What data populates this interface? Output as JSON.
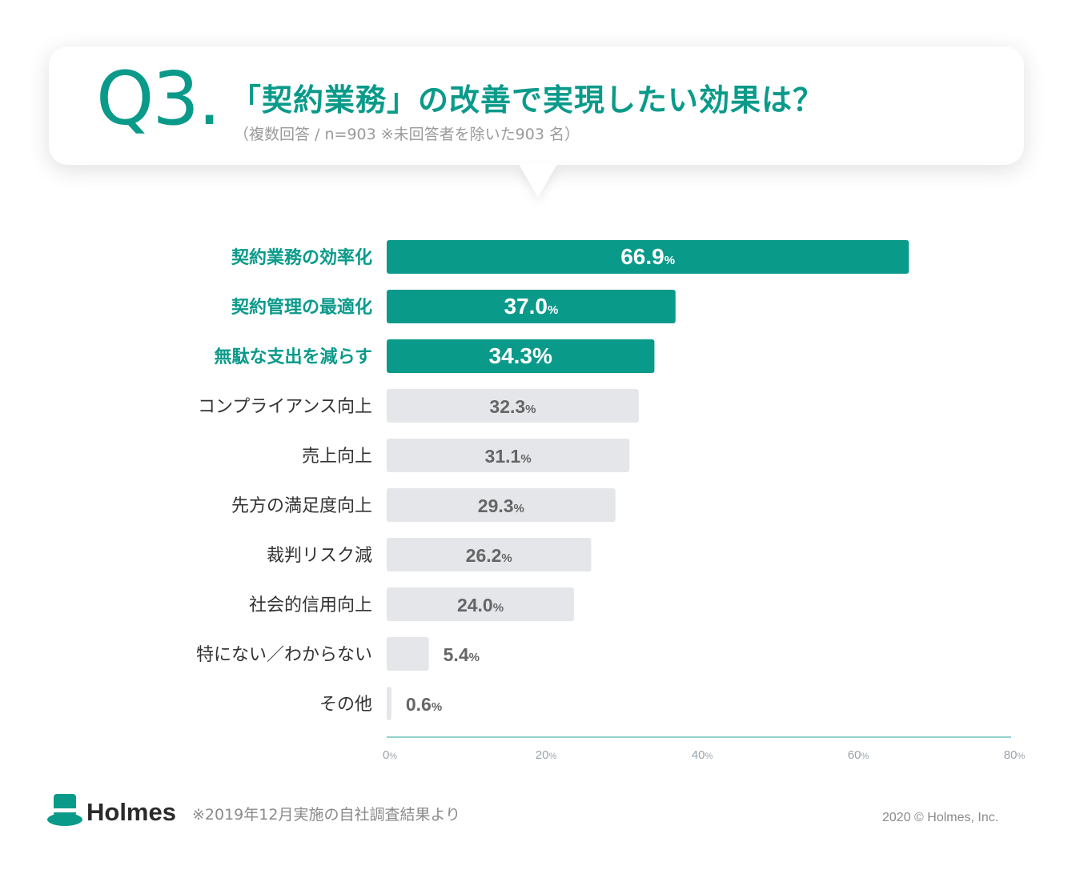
{
  "header": {
    "q_number": "Q3.",
    "title": "「契約業務」の改善で実現したい効果は？",
    "subtitle": "（複数回答 / n=903 ※未回答者を除いた903 名）"
  },
  "footer": {
    "logo": "Holmes",
    "note": "※2019年12月実施の自社調査結果より",
    "copyright": "2020 © Holmes, Inc."
  },
  "colors": {
    "accent": "#0a9a8a",
    "bar_highlight": "#0a9a8a",
    "bar_normal": "#e4e6ea",
    "label_normal": "#333333",
    "value_normal": "#666666",
    "axis": "#6cc4bb"
  },
  "chart_data": {
    "type": "bar",
    "orientation": "horizontal",
    "categories": [
      "契約業務の効率化",
      "契約管理の最適化",
      "無駄な支出を減らす",
      "コンプライアンス向上",
      "売上向上",
      "先方の満足度向上",
      "裁判リスク減",
      "社会的信用向上",
      "特にない／わからない",
      "その他"
    ],
    "values": [
      66.9,
      37.0,
      34.3,
      32.3,
      31.1,
      29.3,
      26.2,
      24.0,
      5.4,
      0.6
    ],
    "value_labels": [
      "66.9",
      "37.0",
      "34.3",
      "32.3",
      "31.1",
      "29.3",
      "26.2",
      "24.0",
      "5.4",
      "0.6"
    ],
    "value_unit": "%",
    "highlighted": [
      true,
      true,
      true,
      false,
      false,
      false,
      false,
      false,
      false,
      false
    ],
    "xlim": [
      0,
      80
    ],
    "xticks": [
      0,
      20,
      40,
      60,
      80
    ],
    "xtick_unit": "%",
    "grid": false
  }
}
